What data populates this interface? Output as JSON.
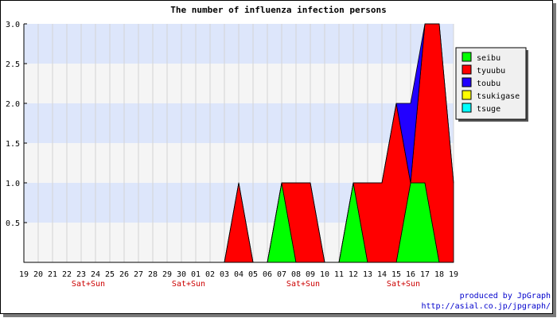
{
  "chart_data": {
    "type": "area",
    "title": "The number of influenza infection persons",
    "ylim": [
      0,
      3
    ],
    "y_ticks": [
      "0.5",
      "1.0",
      "1.5",
      "2.0",
      "2.5",
      "3.0"
    ],
    "categories": [
      "19",
      "20",
      "21",
      "22",
      "23",
      "24",
      "25",
      "26",
      "27",
      "28",
      "29",
      "30",
      "01",
      "02",
      "03",
      "04",
      "05",
      "06",
      "07",
      "08",
      "09",
      "10",
      "11",
      "12",
      "13",
      "14",
      "15",
      "16",
      "17",
      "18",
      "19"
    ],
    "weekend_label": "Sat+Sun",
    "weekend_label_under": [
      "23",
      "30",
      "08",
      "15"
    ],
    "stacked": true,
    "legend_position": "right",
    "series": [
      {
        "name": "seibu",
        "color": "#00ff00",
        "values": [
          0,
          0,
          0,
          0,
          0,
          0,
          0,
          0,
          0,
          0,
          0,
          0,
          0,
          0,
          0,
          0,
          0,
          0,
          1,
          0,
          0,
          0,
          0,
          1,
          0,
          0,
          0,
          1,
          1,
          0,
          0
        ]
      },
      {
        "name": "tyuubu",
        "color": "#ff0000",
        "values": [
          0,
          0,
          0,
          0,
          0,
          0,
          0,
          0,
          0,
          0,
          0,
          0,
          0,
          0,
          0,
          1,
          0,
          0,
          0,
          1,
          1,
          0,
          0,
          0,
          1,
          1,
          2,
          0,
          2,
          3,
          1
        ]
      },
      {
        "name": "toubu",
        "color": "#2200ff",
        "values": [
          0,
          0,
          0,
          0,
          0,
          0,
          0,
          0,
          0,
          0,
          0,
          0,
          0,
          0,
          0,
          0,
          0,
          0,
          0,
          0,
          0,
          0,
          0,
          0,
          0,
          0,
          0,
          1,
          0,
          0,
          0
        ]
      },
      {
        "name": "tsukigase",
        "color": "#ffff00",
        "values": [
          0,
          0,
          0,
          0,
          0,
          0,
          0,
          0,
          0,
          0,
          0,
          0,
          0,
          0,
          0,
          0,
          0,
          0,
          0,
          0,
          0,
          0,
          0,
          0,
          0,
          0,
          0,
          0,
          0,
          0,
          0
        ]
      },
      {
        "name": "tsuge",
        "color": "#00ffff",
        "values": [
          0,
          0,
          0,
          0,
          0,
          0,
          0,
          0,
          0,
          0,
          0,
          0,
          0,
          0,
          0,
          0,
          0,
          0,
          0,
          0,
          0,
          0,
          0,
          0,
          0,
          0,
          0,
          0,
          0,
          0,
          0
        ]
      }
    ]
  },
  "credit": {
    "line1": "produced by JpGraph",
    "line2": "http://asial.co.jp/jpgraph/"
  }
}
